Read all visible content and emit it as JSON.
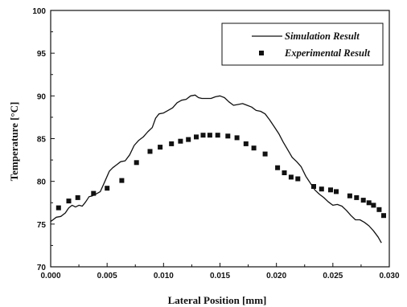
{
  "chart_data": {
    "type": "line",
    "xlabel": "Lateral Position [mm]",
    "ylabel": "Temperature [°C]",
    "xlim": [
      0.0,
      0.03
    ],
    "ylim": [
      70,
      100
    ],
    "x_ticks": [
      "0.000",
      "0.005",
      "0.010",
      "0.015",
      "0.020",
      "0.025",
      "0.030"
    ],
    "y_ticks": [
      "70",
      "75",
      "80",
      "85",
      "90",
      "95",
      "100"
    ],
    "grid": false,
    "legend_position": "top-right",
    "series": [
      {
        "name": "Simulation Result",
        "style": "line",
        "color": "#111111",
        "x": [
          0.0,
          0.0005,
          0.0009,
          0.0013,
          0.0016,
          0.0019,
          0.0022,
          0.0025,
          0.0028,
          0.0031,
          0.0034,
          0.0037,
          0.004,
          0.0044,
          0.0048,
          0.0052,
          0.0055,
          0.0058,
          0.0062,
          0.0066,
          0.007,
          0.0074,
          0.0078,
          0.0082,
          0.0086,
          0.009,
          0.0093,
          0.0096,
          0.01,
          0.0104,
          0.0108,
          0.0112,
          0.0116,
          0.012,
          0.0124,
          0.0128,
          0.0131,
          0.0134,
          0.0138,
          0.0142,
          0.0146,
          0.015,
          0.0154,
          0.0158,
          0.0162,
          0.0166,
          0.017,
          0.0174,
          0.0178,
          0.0182,
          0.0186,
          0.019,
          0.0194,
          0.0198,
          0.0202,
          0.0206,
          0.021,
          0.0214,
          0.0218,
          0.0222,
          0.0226,
          0.023,
          0.0234,
          0.0238,
          0.0242,
          0.0246,
          0.025,
          0.0254,
          0.0258,
          0.0262,
          0.0266,
          0.027,
          0.0274,
          0.0278,
          0.0282,
          0.0286,
          0.029,
          0.0293
        ],
        "y": [
          75.3,
          75.8,
          75.9,
          76.3,
          76.9,
          77.2,
          77.0,
          77.2,
          77.1,
          77.6,
          78.2,
          78.3,
          78.5,
          78.8,
          80.0,
          81.2,
          81.6,
          81.9,
          82.3,
          82.4,
          83.1,
          84.2,
          84.8,
          85.2,
          85.8,
          86.3,
          87.4,
          87.9,
          88.0,
          88.3,
          88.6,
          89.2,
          89.5,
          89.6,
          90.0,
          90.1,
          89.8,
          89.7,
          89.7,
          89.7,
          89.9,
          90.0,
          89.8,
          89.3,
          88.9,
          89.0,
          89.1,
          88.9,
          88.7,
          88.3,
          88.2,
          87.9,
          87.2,
          86.4,
          85.6,
          84.6,
          83.7,
          82.8,
          82.3,
          81.7,
          80.6,
          79.8,
          79.0,
          78.5,
          78.1,
          77.6,
          77.2,
          77.3,
          77.1,
          76.6,
          76.0,
          75.5,
          75.5,
          75.2,
          74.8,
          74.2,
          73.5,
          72.8
        ]
      },
      {
        "name": "Experimental Result",
        "style": "markers",
        "color": "#111111",
        "x": [
          0.0007,
          0.0016,
          0.0024,
          0.0038,
          0.005,
          0.0063,
          0.0076,
          0.0088,
          0.0097,
          0.0107,
          0.0115,
          0.0122,
          0.0129,
          0.0135,
          0.0141,
          0.0148,
          0.0157,
          0.0165,
          0.0173,
          0.018,
          0.019,
          0.0201,
          0.0207,
          0.0213,
          0.0219,
          0.0233,
          0.024,
          0.0248,
          0.0253,
          0.0265,
          0.0271,
          0.0277,
          0.0282,
          0.0286,
          0.0291,
          0.0295
        ],
        "y": [
          76.9,
          77.7,
          78.1,
          78.6,
          79.2,
          80.1,
          82.2,
          83.5,
          84.0,
          84.4,
          84.7,
          84.9,
          85.2,
          85.4,
          85.4,
          85.4,
          85.3,
          85.1,
          84.4,
          83.9,
          83.2,
          81.6,
          81.0,
          80.5,
          80.3,
          79.4,
          79.1,
          79.0,
          78.8,
          78.3,
          78.1,
          77.8,
          77.5,
          77.2,
          76.7,
          76.0
        ]
      }
    ]
  }
}
